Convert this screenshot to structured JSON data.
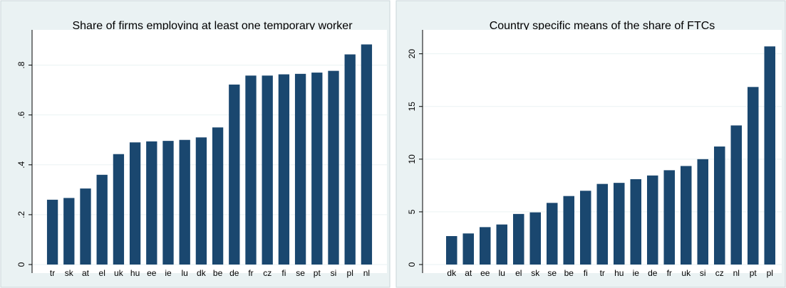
{
  "chart_data": [
    {
      "type": "bar",
      "title": "Share of firms employing at least one temporary worker",
      "categories": [
        "tr",
        "sk",
        "at",
        "el",
        "uk",
        "hu",
        "ee",
        "ie",
        "lu",
        "dk",
        "be",
        "de",
        "fr",
        "cz",
        "fi",
        "se",
        "pt",
        "si",
        "pl",
        "nl"
      ],
      "values": [
        0.26,
        0.267,
        0.305,
        0.36,
        0.443,
        0.49,
        0.494,
        0.496,
        0.5,
        0.51,
        0.55,
        0.722,
        0.758,
        0.758,
        0.763,
        0.765,
        0.77,
        0.777,
        0.843,
        0.883
      ],
      "color": "#1a476f",
      "ylim": [
        0,
        0.93
      ],
      "yticks": [
        0,
        {
          "value": 0.2,
          "label": ".2"
        },
        {
          "value": 0.4,
          "label": ".4"
        },
        {
          "value": 0.6,
          "label": ".6"
        },
        {
          "value": 0.8,
          "label": ".8"
        }
      ],
      "grid": true
    },
    {
      "type": "bar",
      "title": "Country specific means of the share of FTCs",
      "categories": [
        "dk",
        "at",
        "ee",
        "lu",
        "el",
        "sk",
        "se",
        "be",
        "fi",
        "tr",
        "hu",
        "ie",
        "de",
        "fr",
        "uk",
        "si",
        "cz",
        "nl",
        "pt",
        "pl"
      ],
      "values": [
        2.7,
        2.95,
        3.55,
        3.8,
        4.8,
        4.95,
        5.85,
        6.5,
        7.0,
        7.65,
        7.75,
        8.1,
        8.45,
        8.95,
        9.35,
        10.0,
        11.2,
        13.2,
        16.85,
        20.7
      ],
      "color": "#1a476f",
      "ylim": [
        0,
        22
      ],
      "yticks": [
        0,
        5,
        10,
        15,
        20
      ],
      "grid": true
    }
  ]
}
